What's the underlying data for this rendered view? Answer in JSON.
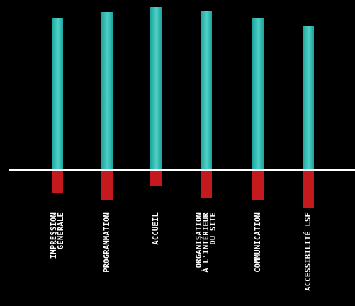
{
  "chart_data": {
    "type": "bar",
    "categories": [
      [
        "IMPRESSION",
        "GÉNÉRALE"
      ],
      [
        "PROGRAMMATION"
      ],
      [
        "ACCUEIL"
      ],
      [
        "ORGANISATION",
        "À L'INTÉRIEUR",
        "DU SITE"
      ],
      [
        "COMMUNICATION"
      ],
      [
        "ACCESSIBILITÉ LSF"
      ]
    ],
    "series": [
      {
        "values": [
          214,
          223,
          230,
          224,
          215,
          204
        ]
      },
      {
        "values": [
          -33,
          -42,
          -23,
          -40,
          -42,
          -53
        ]
      }
    ],
    "ylim": [
      -60,
      235
    ],
    "colors": {
      "positive": "#1aa5a0",
      "positive_highlight": "#4fd0c4",
      "negative": "#c41a1e",
      "baseline": "#ffffff",
      "background": "#000000",
      "label": "#ffffff"
    },
    "grid": false,
    "legend": "none",
    "baseline": true
  }
}
